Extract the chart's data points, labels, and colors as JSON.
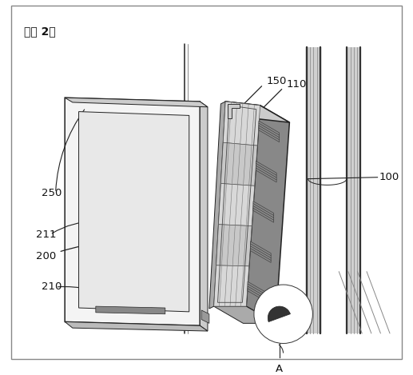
{
  "title": "『도 2』",
  "bg_color": "#ffffff",
  "lc": "#222222",
  "figsize": [
    5.17,
    4.69
  ],
  "dpi": 100
}
